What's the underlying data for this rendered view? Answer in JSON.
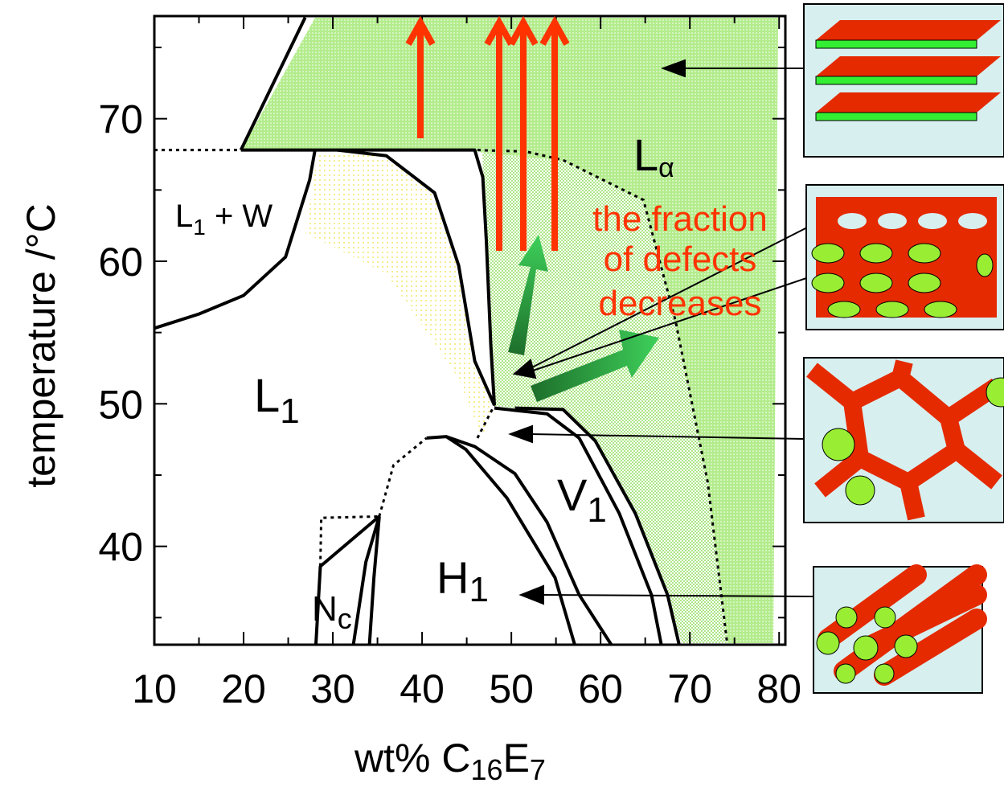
{
  "chart_data": {
    "type": "phase-diagram",
    "x_label": [
      "wt% C",
      "16",
      "E",
      "7"
    ],
    "y_label": "temperature /°C",
    "xlim": [
      10,
      80.7
    ],
    "ylim": [
      33.1,
      77.2
    ],
    "xticks": [
      10,
      20,
      30,
      40,
      50,
      60,
      70,
      80
    ],
    "xminor": [
      15,
      25,
      35,
      45,
      55,
      65,
      75
    ],
    "yticks": [
      40,
      50,
      60,
      70
    ],
    "yminor": [
      35,
      45,
      55,
      65,
      75
    ],
    "line_color": "#000000",
    "boundaries": [
      {
        "style": "solid",
        "x": [
          10,
          15,
          20,
          24.7,
          27.4,
          28
        ],
        "y": [
          55.3,
          56.3,
          57.6,
          60.3,
          65.7,
          67.8
        ]
      },
      {
        "style": "solid",
        "x": [
          19.7,
          26.9
        ],
        "y": [
          67.8,
          77.1
        ]
      },
      {
        "style": "dotted",
        "x": [
          10,
          19.7
        ],
        "y": [
          67.8,
          67.8
        ]
      },
      {
        "style": "solid",
        "x": [
          19.7,
          28,
          45.9,
          46.8,
          47.2,
          47.7,
          48.1
        ],
        "y": [
          67.8,
          67.8,
          67.8,
          65.9,
          61.4,
          54.1,
          49.9
        ]
      },
      {
        "style": "solid",
        "x": [
          30.5,
          36,
          41.4,
          44.1,
          45.9,
          48.1
        ],
        "y": [
          67.8,
          67.4,
          64.8,
          59.7,
          53,
          49.9
        ]
      },
      {
        "style": "solid",
        "x": [
          50.4,
          55.8,
          59.4,
          63.9,
          67.5,
          68.8
        ],
        "y": [
          49.7,
          49.6,
          47.4,
          42.3,
          36.6,
          33.1
        ]
      },
      {
        "style": "solid",
        "x": [
          48.1,
          54,
          57.6,
          62.1,
          65.7,
          66.8
        ],
        "y": [
          49.7,
          49.3,
          47.6,
          42.3,
          36.6,
          33.1
        ]
      },
      {
        "style": "solid",
        "x": [
          42.7,
          45.9,
          50.4,
          54,
          57.6,
          61.2
        ],
        "y": [
          47.7,
          47,
          45.1,
          41.7,
          36.6,
          33.1
        ]
      },
      {
        "style": "solid",
        "x": [
          40.5,
          42.7,
          44.9,
          49.5,
          54.9,
          57.1
        ],
        "y": [
          47.6,
          47.7,
          46.8,
          43.4,
          37.8,
          33.1
        ]
      },
      {
        "style": "solid",
        "x": [
          35.2,
          34.6,
          34.1
        ],
        "y": [
          42.1,
          37.8,
          33.1
        ]
      },
      {
        "style": "solid",
        "x": [
          35.2,
          33.7,
          32.3
        ],
        "y": [
          42.1,
          38.9,
          33.1
        ]
      },
      {
        "style": "solid",
        "x": [
          28.1,
          28.6,
          35.2
        ],
        "y": [
          33.1,
          38.6,
          42.1
        ]
      },
      {
        "style": "dotted",
        "x": [
          28.6,
          28.7,
          35.2
        ],
        "y": [
          38.6,
          42,
          42.1
        ]
      },
      {
        "style": "dotted",
        "x": [
          35.2,
          36.8,
          40.5
        ],
        "y": [
          42.1,
          45.7,
          47.6
        ]
      },
      {
        "style": "dotted",
        "x": [
          46.2,
          48.1
        ],
        "y": [
          47.6,
          49.9
        ]
      },
      {
        "style": "dotted",
        "x": [
          46.2,
          51.6,
          55.8,
          64.8,
          68.4,
          72,
          74.2
        ],
        "y": [
          67.8,
          67.7,
          67.1,
          64.3,
          55.8,
          44.5,
          33.1
        ]
      }
    ],
    "annotations": [
      {
        "text": "L",
        "sub": "1",
        "suffix": " + W"
      },
      {
        "text": "L",
        "sub": "1"
      },
      {
        "text": "L",
        "sub": "α"
      },
      {
        "text": "V",
        "sub": "1"
      },
      {
        "text": "H",
        "sub": "1"
      },
      {
        "text": "N",
        "sub": "c"
      }
    ],
    "note": [
      "the fraction",
      "of defects",
      "decreases"
    ]
  }
}
